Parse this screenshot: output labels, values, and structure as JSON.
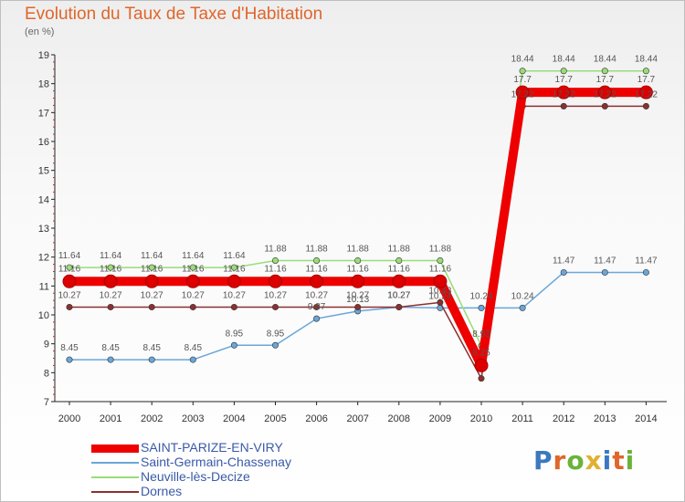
{
  "title": "Evolution du Taux de Taxe d'Habitation",
  "unit": "(en %)",
  "logo": {
    "text": "Proxiti",
    "colors": [
      "#3a78c0",
      "#e0662b",
      "#6ab33a",
      "#e0b030",
      "#3a78c0",
      "#e0662b",
      "#6ab33a"
    ]
  },
  "chart_data": {
    "type": "line",
    "x": [
      2000,
      2001,
      2002,
      2003,
      2004,
      2005,
      2006,
      2007,
      2008,
      2009,
      2010,
      2011,
      2012,
      2013,
      2014
    ],
    "ylim": [
      7,
      19
    ],
    "yticks": [
      7,
      8,
      9,
      10,
      11,
      12,
      13,
      14,
      15,
      16,
      17,
      18,
      19
    ],
    "grid": false,
    "legend_position": "bottom-left",
    "series": [
      {
        "name": "SAINT-PARIZE-EN-VIRY",
        "color": "#ee0000",
        "width": 10,
        "values": [
          11.16,
          11.16,
          11.16,
          11.16,
          11.16,
          11.16,
          11.16,
          11.16,
          11.16,
          11.16,
          8.25,
          17.7,
          17.7,
          17.7,
          17.7
        ],
        "labels": [
          "11.16",
          "11.16",
          "11.16",
          "11.16",
          "11.16",
          "11.16",
          "11.16",
          "11.16",
          "11.16",
          "11.16",
          "8.25",
          "17.7",
          "17.7",
          "17.7",
          "17.7"
        ]
      },
      {
        "name": "Saint-Germain-Chassenay",
        "color": "#6aa6d9",
        "width": 1.5,
        "values": [
          8.45,
          8.45,
          8.45,
          8.45,
          8.95,
          8.95,
          9.87,
          10.13,
          10.27,
          10.24,
          10.24,
          10.24,
          11.47,
          11.47,
          11.47
        ],
        "labels": [
          "8.45",
          "8.45",
          "8.45",
          "8.45",
          "8.95",
          "8.95",
          "9.87",
          "10.13",
          "10.27",
          "10.24",
          "10.24",
          "10.24",
          "11.47",
          "11.47",
          "11.47"
        ]
      },
      {
        "name": "Neuville-lès-Decize",
        "color": "#99dd77",
        "width": 1.5,
        "values": [
          11.64,
          11.64,
          11.64,
          11.64,
          11.64,
          11.88,
          11.88,
          11.88,
          11.88,
          11.88,
          8.93,
          18.44,
          18.44,
          18.44,
          18.44
        ],
        "labels": [
          "11.64",
          "11.64",
          "11.64",
          "11.64",
          "11.64",
          "11.88",
          "11.88",
          "11.88",
          "11.88",
          "11.88",
          "8.93",
          "18.44",
          "18.44",
          "18.44",
          "18.44"
        ]
      },
      {
        "name": "Dornes",
        "color": "#8b3030",
        "width": 1.5,
        "values": [
          10.27,
          10.27,
          10.27,
          10.27,
          10.27,
          10.27,
          10.27,
          10.27,
          10.27,
          10.43,
          7.8,
          17.22,
          17.22,
          17.22,
          17.22
        ],
        "labels": [
          "10.27",
          "10.27",
          "10.27",
          "10.27",
          "10.27",
          "10.27",
          "10.27",
          "10.27",
          "10.27",
          "10.43",
          "",
          "17.22",
          "17.22",
          "17.22",
          "17.22"
        ]
      }
    ]
  }
}
